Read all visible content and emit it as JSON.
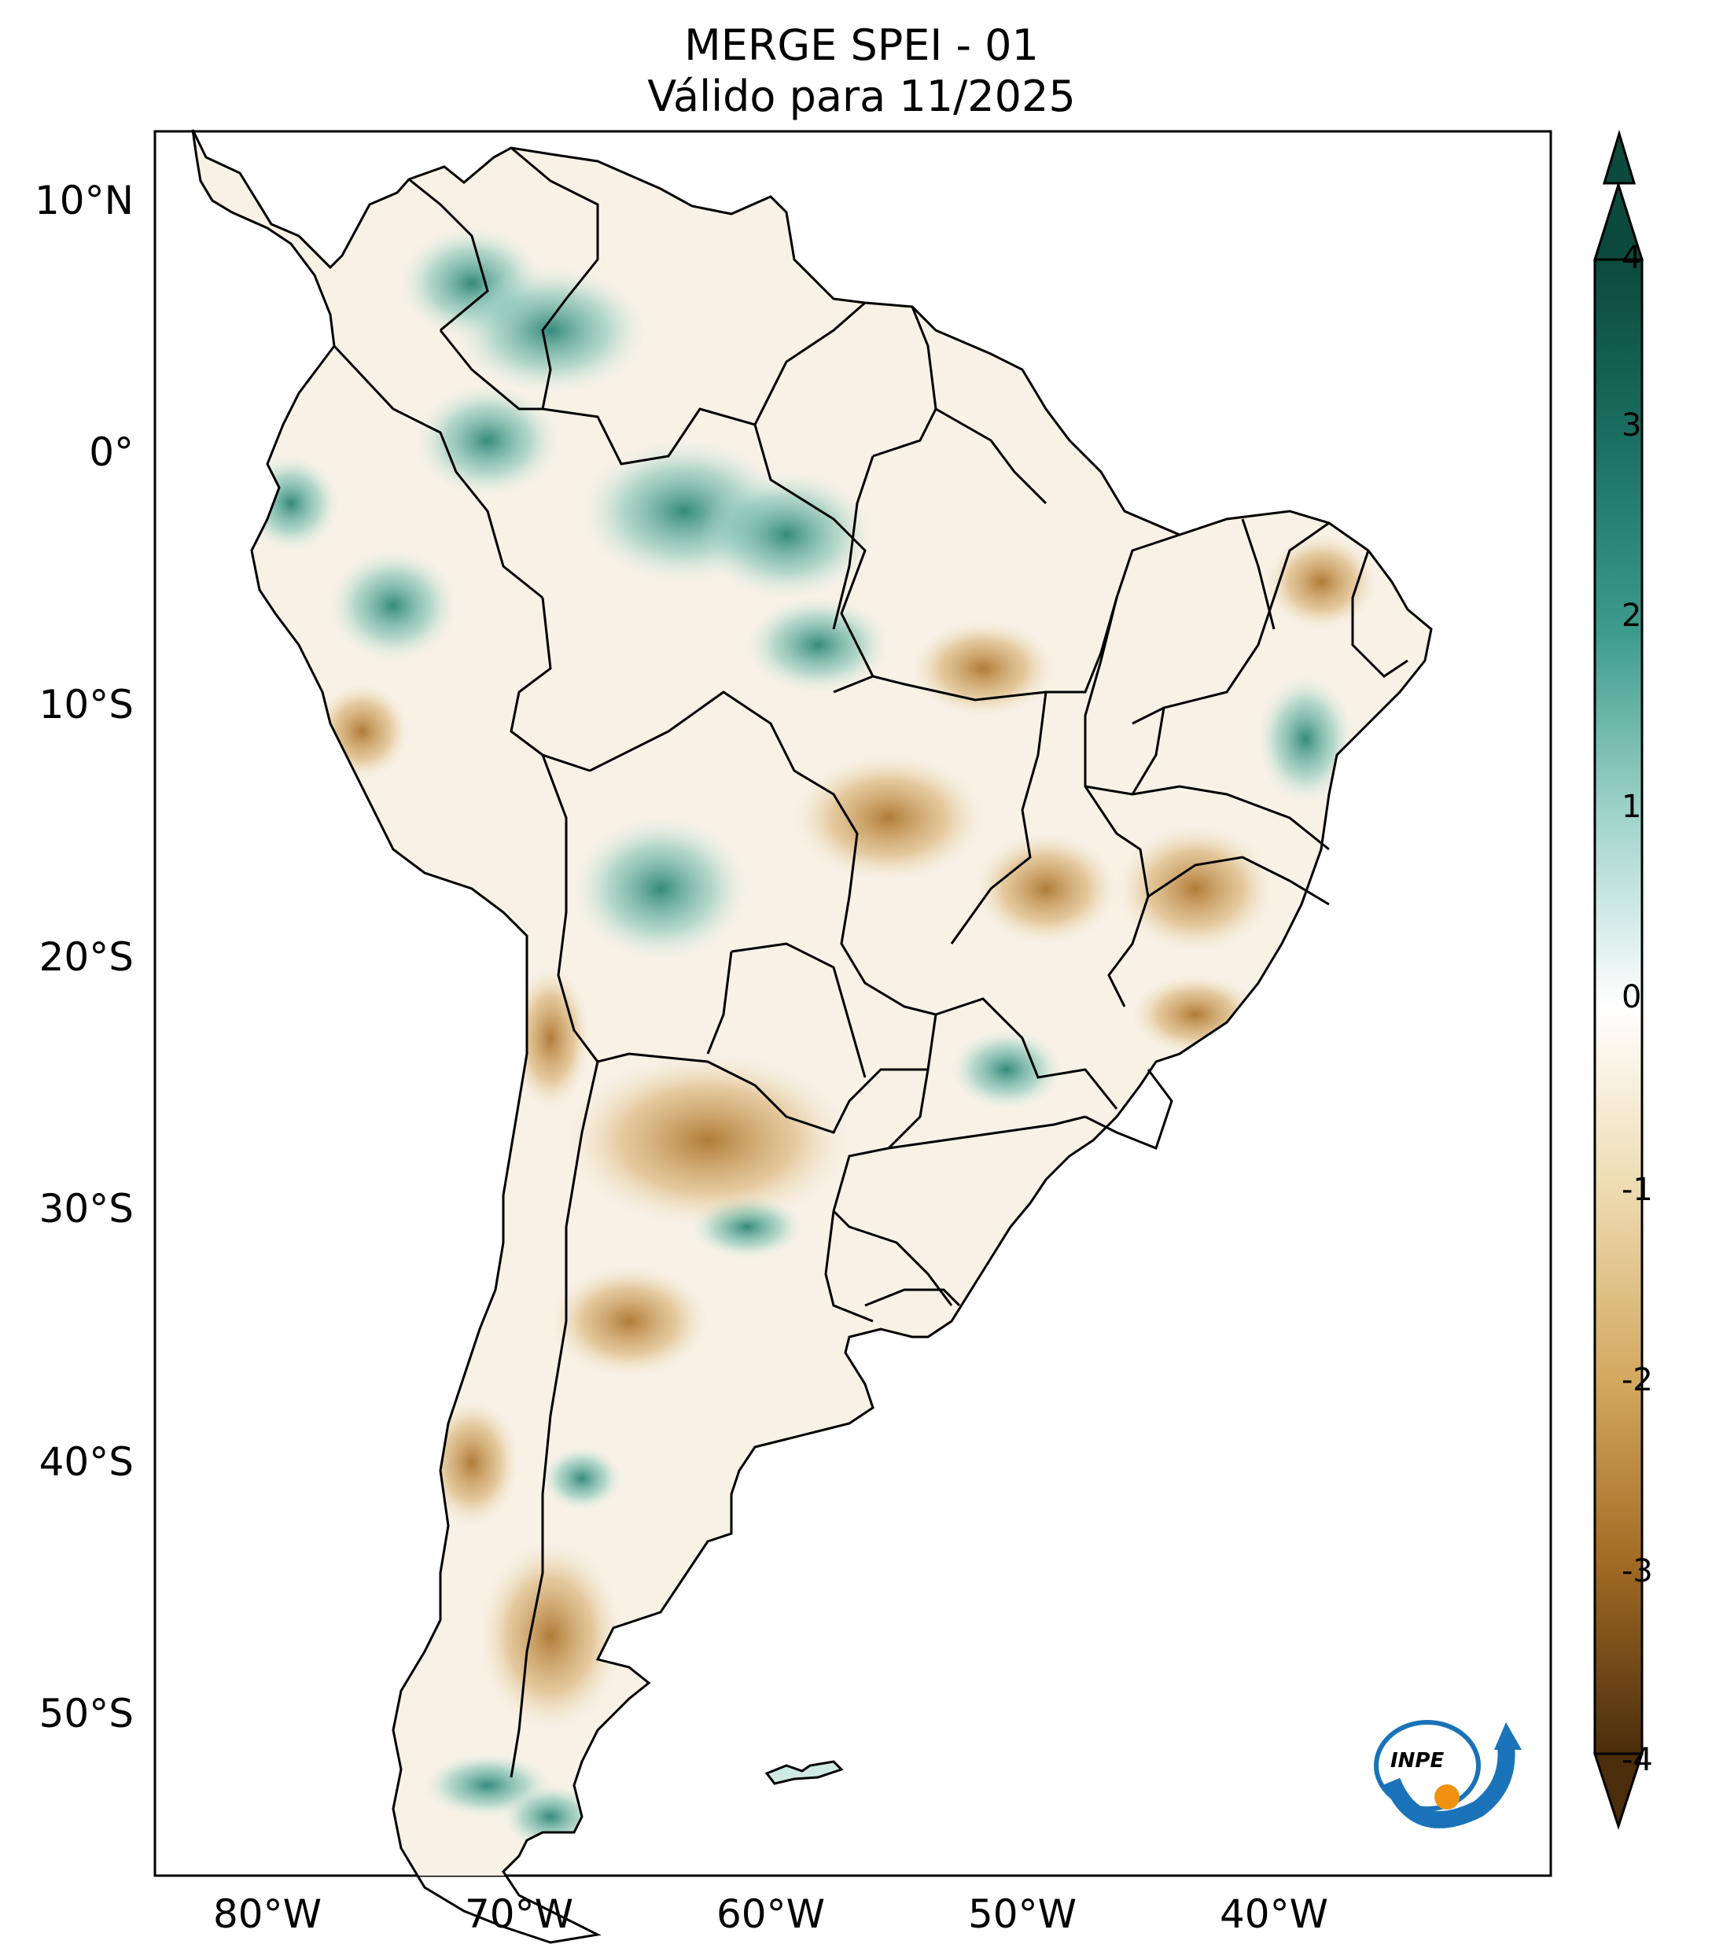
{
  "title": {
    "line1": "MERGE   SPEI - 01",
    "line2": "Válido para 11/2025"
  },
  "map": {
    "lat_ticks": [
      "10°N",
      "0°",
      "10°S",
      "20°S",
      "30°S",
      "40°S",
      "50°S"
    ],
    "lon_ticks": [
      "80°W",
      "70°W",
      "60°W",
      "50°W",
      "40°W"
    ]
  },
  "colorbar": {
    "labels": [
      "4",
      "3",
      "2",
      "1",
      "0",
      "-1",
      "-2",
      "-3",
      "-4"
    ],
    "range": [
      -4,
      4
    ],
    "colors": {
      "max": "#0c4a3b",
      "wet": "#3f9b8d",
      "neutral": "#ffffff",
      "dry": "#c9994f",
      "min": "#4a2d0b"
    }
  },
  "logo": {
    "text": "INPE"
  },
  "colors": {
    "ocean": "#ffffff",
    "border": "#000000",
    "dry": "#d8b16f",
    "wet": "#2f8f7f"
  }
}
